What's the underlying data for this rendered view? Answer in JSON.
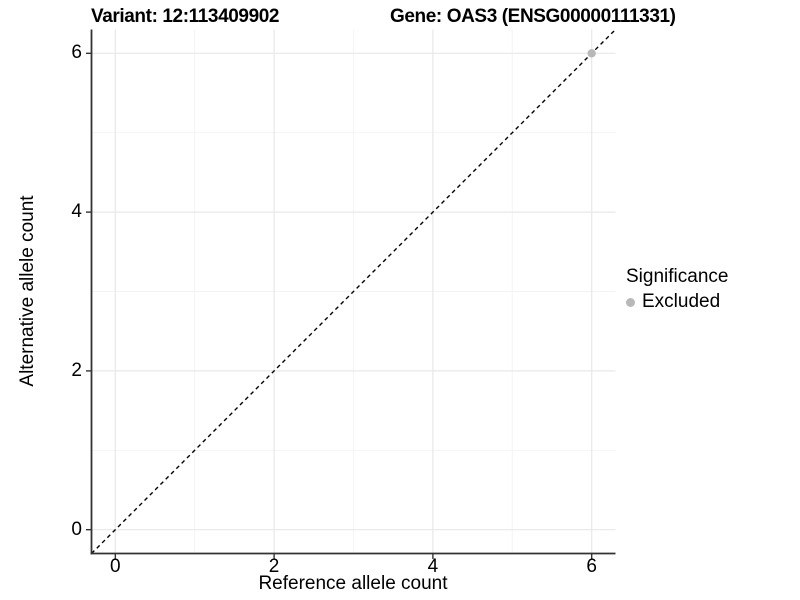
{
  "titles": {
    "variant": "Variant: 12:113409902",
    "gene": "Gene: OAS3 (ENSG00000111331)"
  },
  "axes": {
    "x_label": "Reference allele count",
    "y_label": "Alternative allele count"
  },
  "legend": {
    "title": "Significance",
    "items": [
      {
        "label": "Excluded",
        "color": "#b8b8b8"
      }
    ]
  },
  "colors": {
    "background": "#ffffff",
    "axis_line": "#333333",
    "tick_mark": "#333333",
    "grid_major": "#e8e8e8",
    "grid_minor": "#f3f3f3",
    "reference_line": "#000000",
    "text": "#000000"
  },
  "chart_data": {
    "type": "scatter",
    "title": "Variant: 12:113409902 | Gene: OAS3 (ENSG00000111331)",
    "xlabel": "Reference allele count",
    "ylabel": "Alternative allele count",
    "xlim": [
      -0.3,
      6.3
    ],
    "ylim": [
      -0.3,
      6.3
    ],
    "x_ticks": [
      0,
      2,
      4,
      6
    ],
    "y_ticks": [
      0,
      2,
      4,
      6
    ],
    "x_minor_ticks": [
      1,
      3,
      5
    ],
    "y_minor_ticks": [
      1,
      3,
      5
    ],
    "grid": true,
    "legend_position": "right",
    "series": [
      {
        "name": "Excluded",
        "color": "#b8b8b8",
        "points": [
          {
            "x": 6,
            "y": 6
          }
        ]
      }
    ],
    "reference_line": {
      "style": "dashed",
      "color": "#000000",
      "from": {
        "x": -0.3,
        "y": -0.3
      },
      "to": {
        "x": 6.3,
        "y": 6.3
      }
    }
  }
}
